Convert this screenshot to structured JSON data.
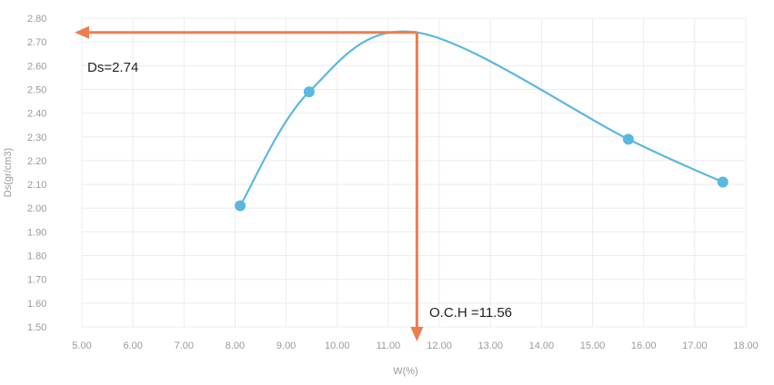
{
  "chart_data": {
    "type": "scatter",
    "xlabel": "W(%)",
    "ylabel": "Ds(gr/cm3)",
    "xlim": [
      5.0,
      18.0
    ],
    "ylim": [
      1.5,
      2.8
    ],
    "x_ticks": [
      "5.00",
      "6.00",
      "7.00",
      "8.00",
      "9.00",
      "10.00",
      "11.00",
      "12.00",
      "13.00",
      "14.00",
      "15.00",
      "16.00",
      "17.00",
      "18.00"
    ],
    "y_ticks": [
      "1.50",
      "1.60",
      "1.70",
      "1.80",
      "1.90",
      "2.00",
      "2.10",
      "2.20",
      "2.30",
      "2.40",
      "2.50",
      "2.60",
      "2.70",
      "2.80"
    ],
    "grid": true,
    "series": [
      {
        "points": [
          {
            "x": 8.1,
            "y": 2.01
          },
          {
            "x": 9.45,
            "y": 2.49
          },
          {
            "x": 15.7,
            "y": 2.29
          },
          {
            "x": 17.55,
            "y": 2.11
          }
        ]
      }
    ],
    "curve_peak": {
      "x": 11.56,
      "y": 2.74
    },
    "annotations": {
      "ds_label": "Ds=2.74",
      "och_label": "O.C.H =11.56"
    },
    "colors": {
      "series": "#5ab8e0",
      "marker": "#5ab8e0",
      "arrow": "#ee7d4e"
    }
  }
}
